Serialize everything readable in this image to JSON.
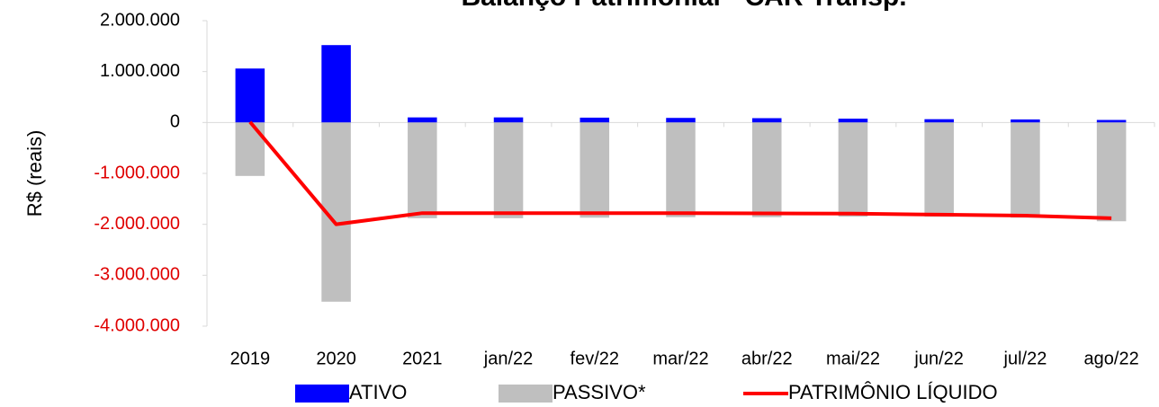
{
  "chart_data": {
    "type": "bar_line",
    "title": "Balanço Patrimonial - CAR Transp.",
    "y_axis_label": "R$ (reais)",
    "categories": [
      "2019",
      "2020",
      "2021",
      "jan/22",
      "fev/22",
      "mar/22",
      "abr/22",
      "mai/22",
      "jun/22",
      "jul/22",
      "ago/22"
    ],
    "series": [
      {
        "name": "ATIVO",
        "type": "bar",
        "color": "#0000ff",
        "values": [
          1060000,
          1520000,
          100000,
          100000,
          95000,
          90000,
          85000,
          75000,
          65000,
          60000,
          50000
        ]
      },
      {
        "name": "PASSIVO*",
        "type": "bar",
        "color": "#bfbfbf",
        "values": [
          -1050000,
          -3520000,
          -1880000,
          -1880000,
          -1870000,
          -1860000,
          -1860000,
          -1850000,
          -1850000,
          -1870000,
          -1940000
        ]
      },
      {
        "name": "PATRIMÔNIO LÍQUIDO",
        "type": "line",
        "color": "#ff0000",
        "values": [
          10000,
          -2000000,
          -1780000,
          -1780000,
          -1780000,
          -1780000,
          -1785000,
          -1790000,
          -1810000,
          -1830000,
          -1880000
        ]
      }
    ],
    "ylim": [
      -4000000,
      2000000
    ],
    "yticks": [
      {
        "value": -4000000,
        "label": "-4.000.000"
      },
      {
        "value": -3000000,
        "label": "-3.000.000"
      },
      {
        "value": -2000000,
        "label": "-2.000.000"
      },
      {
        "value": -1000000,
        "label": "-1.000.000"
      },
      0,
      {
        "value": 1000000,
        "label": "1.000.000"
      },
      {
        "value": 2000000,
        "label": "2.000.000"
      }
    ],
    "negative_tick_color": "#e00000",
    "legend": "bottom"
  }
}
